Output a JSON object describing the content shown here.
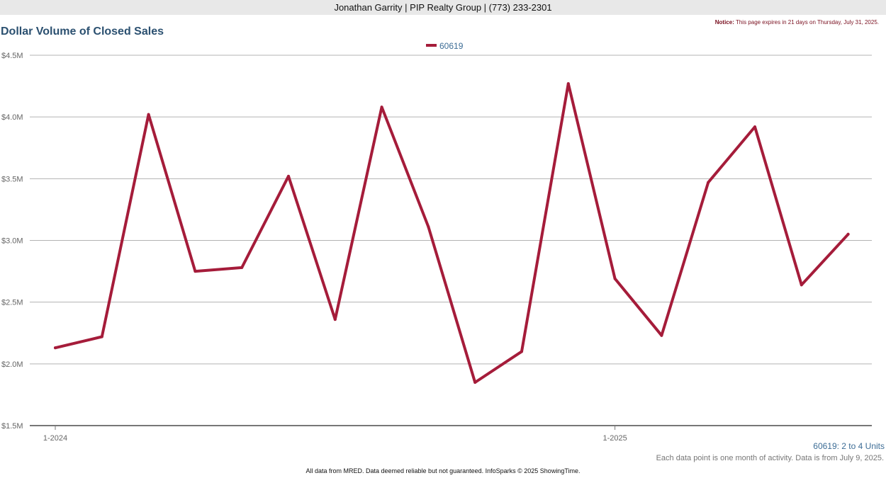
{
  "header": {
    "agent_line": "Jonathan Garrity | PIP Realty Group | (773) 233-2301",
    "notice_label": "Notice:",
    "notice_text": "This page expires in 21 days on Thursday, July 31, 2025."
  },
  "footer": {
    "units": "60619: 2 to 4 Units",
    "note": "Each data point is one month of activity. Data is from July 9, 2025.",
    "disclaimer": "All data from MRED. Data deemed reliable but not guaranteed. InfoSparks © 2025 ShowingTime."
  },
  "colors": {
    "series": "#a51c3a",
    "title": "#2b5070",
    "legend_text": "#3d6d96",
    "grid": "#b3b3b3"
  },
  "chart_data": {
    "type": "line",
    "title": "Dollar Volume of Closed Sales",
    "xlabel": "",
    "ylabel": "",
    "ylim": [
      1500000,
      4500000
    ],
    "yticks": [
      1500000,
      2000000,
      2500000,
      3000000,
      3500000,
      4000000,
      4500000
    ],
    "ytick_labels": [
      "$1.5M",
      "$2.0M",
      "$2.5M",
      "$3.0M",
      "$3.5M",
      "$4.0M",
      "$4.5M"
    ],
    "xtick_labels": [
      {
        "label": "1-2024",
        "month": "2024-01"
      },
      {
        "label": "1-2025",
        "month": "2025-01"
      }
    ],
    "legend_position": "top-center",
    "grid": true,
    "x": [
      "2024-01",
      "2024-02",
      "2024-03",
      "2024-04",
      "2024-05",
      "2024-06",
      "2024-07",
      "2024-08",
      "2024-09",
      "2024-10",
      "2024-11",
      "2024-12",
      "2025-01",
      "2025-02",
      "2025-03",
      "2025-04",
      "2025-05",
      "2025-06"
    ],
    "series": [
      {
        "name": "60619",
        "values": [
          2130000,
          2220000,
          4020000,
          2750000,
          2780000,
          3520000,
          2360000,
          4080000,
          3110000,
          1850000,
          2100000,
          4270000,
          2690000,
          2230000,
          3470000,
          3920000,
          2640000,
          3050000
        ]
      }
    ]
  }
}
